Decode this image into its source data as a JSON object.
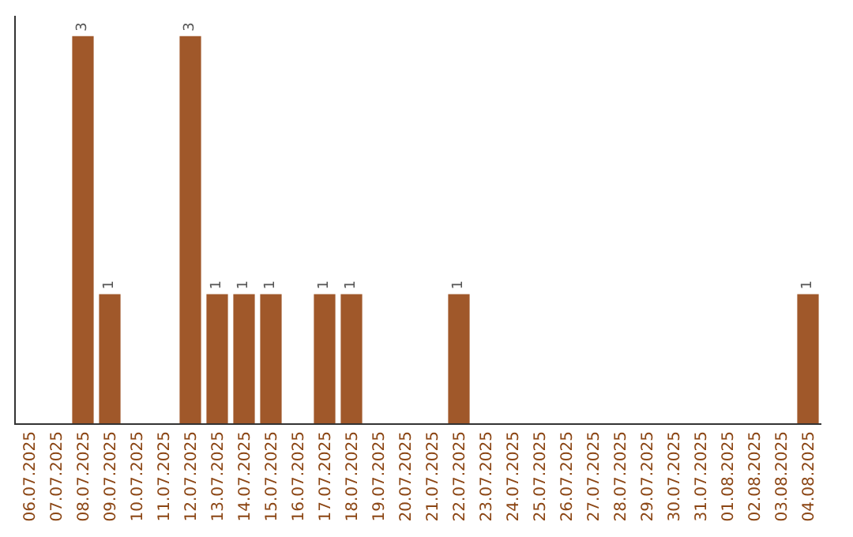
{
  "chart_data": {
    "type": "bar",
    "categories": [
      "06.07.2025",
      "07.07.2025",
      "08.07.2025",
      "09.07.2025",
      "10.07.2025",
      "11.07.2025",
      "12.07.2025",
      "13.07.2025",
      "14.07.2025",
      "15.07.2025",
      "16.07.2025",
      "17.07.2025",
      "18.07.2025",
      "19.07.2025",
      "20.07.2025",
      "21.07.2025",
      "22.07.2025",
      "23.07.2025",
      "24.07.2025",
      "25.07.2025",
      "26.07.2025",
      "27.07.2025",
      "28.07.2025",
      "29.07.2025",
      "30.07.2025",
      "31.07.2025",
      "01.08.2025",
      "02.08.2025",
      "03.08.2025",
      "04.08.2025"
    ],
    "values": [
      0,
      0,
      3,
      1,
      0,
      0,
      3,
      1,
      1,
      1,
      0,
      1,
      1,
      0,
      0,
      0,
      1,
      0,
      0,
      0,
      0,
      0,
      0,
      0,
      0,
      0,
      0,
      0,
      0,
      1
    ],
    "value_labels": [
      null,
      null,
      "3",
      "1",
      null,
      null,
      "3",
      "1",
      "1",
      "1",
      null,
      "1",
      "1",
      null,
      null,
      null,
      "1",
      null,
      null,
      null,
      null,
      null,
      null,
      null,
      null,
      null,
      null,
      null,
      null,
      "1"
    ],
    "color": "#a0582a"
  }
}
